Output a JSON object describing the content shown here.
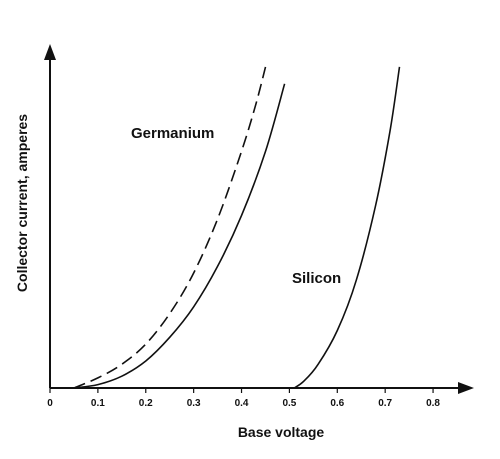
{
  "chart_data": {
    "type": "line",
    "title": "",
    "xlabel": "Base voltage",
    "ylabel": "Collector current, amperes",
    "xlim": [
      0,
      0.85
    ],
    "ylim": [
      0,
      1
    ],
    "x_ticks": [
      "0",
      "0.1",
      "0.2",
      "0.3",
      "0.4",
      "0.5",
      "0.6",
      "0.7",
      "0.8"
    ],
    "y_ticks": [],
    "grid": false,
    "legend": "none",
    "annotations": [
      "Germanium",
      "Silicon"
    ],
    "series": [
      {
        "style": "dashed",
        "color": "#111111",
        "x": [
          0.05,
          0.1,
          0.15,
          0.2,
          0.25,
          0.3,
          0.35,
          0.4,
          0.43,
          0.45
        ],
        "y": [
          0.0,
          0.03,
          0.07,
          0.13,
          0.22,
          0.34,
          0.5,
          0.7,
          0.84,
          0.95
        ]
      },
      {
        "style": "solid",
        "color": "#111111",
        "x": [
          0.05,
          0.1,
          0.15,
          0.2,
          0.25,
          0.3,
          0.35,
          0.4,
          0.45,
          0.49
        ],
        "y": [
          0.0,
          0.01,
          0.035,
          0.08,
          0.15,
          0.24,
          0.36,
          0.51,
          0.7,
          0.9
        ]
      },
      {
        "style": "solid",
        "color": "#111111",
        "x": [
          0.51,
          0.53,
          0.56,
          0.6,
          0.64,
          0.68,
          0.71,
          0.73
        ],
        "y": [
          0.0,
          0.02,
          0.07,
          0.17,
          0.32,
          0.54,
          0.76,
          0.95
        ]
      }
    ]
  }
}
